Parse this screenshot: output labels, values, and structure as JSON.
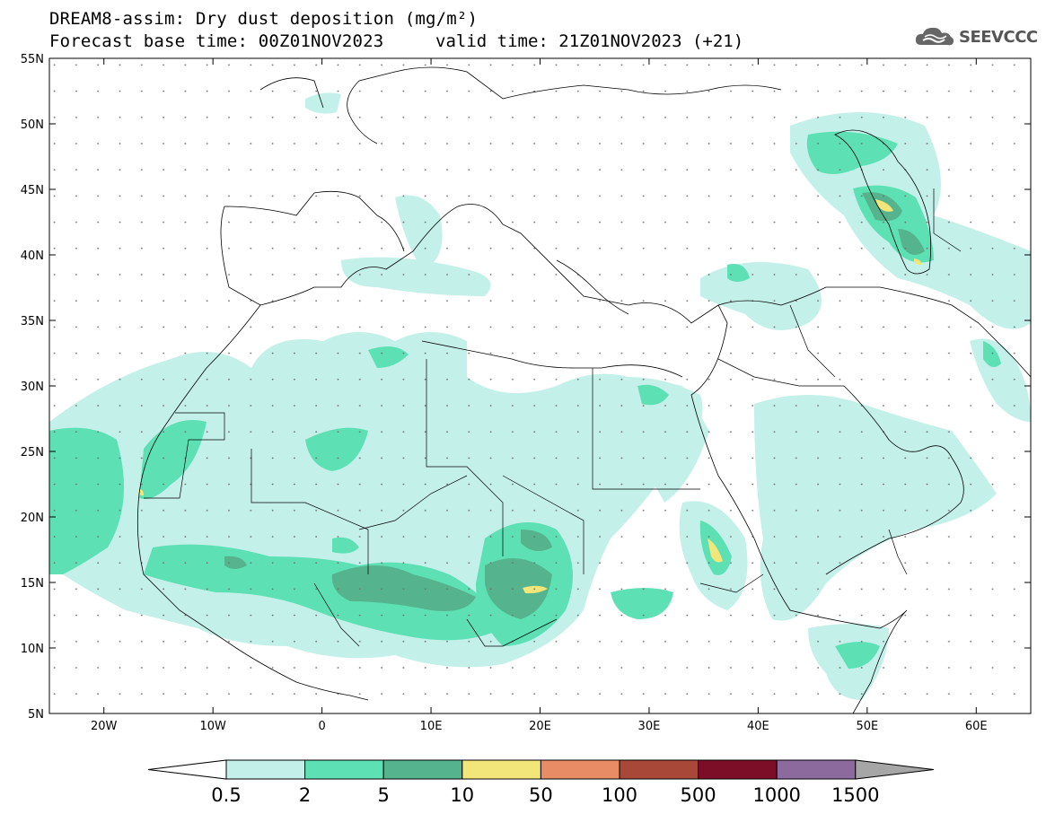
{
  "title": {
    "line1": "DREAM8-assim: Dry dust deposition (mg/m²)",
    "base_time": "Forecast base time: 00Z01NOV2023",
    "valid_time": "valid time: 21Z01NOV2023 (+21)"
  },
  "logo": {
    "text": "SEEVCCC",
    "icon": "cloud-icon"
  },
  "axes": {
    "lat_ticks": [
      "55N",
      "50N",
      "45N",
      "40N",
      "35N",
      "30N",
      "25N",
      "20N",
      "15N",
      "10N",
      "5N"
    ],
    "lon_ticks": [
      "20W",
      "10W",
      "0",
      "10E",
      "20E",
      "30E",
      "40E",
      "50E",
      "60E"
    ]
  },
  "legend": {
    "labels": [
      "0.5",
      "2",
      "5",
      "10",
      "50",
      "100",
      "500",
      "1000",
      "1500"
    ],
    "colors": [
      "#c4f0ea",
      "#5ee0b5",
      "#55b48e",
      "#f2e67a",
      "#e88c66",
      "#a84838",
      "#7d0e28",
      "#8d6a9e",
      "#a6a6a6"
    ]
  }
}
